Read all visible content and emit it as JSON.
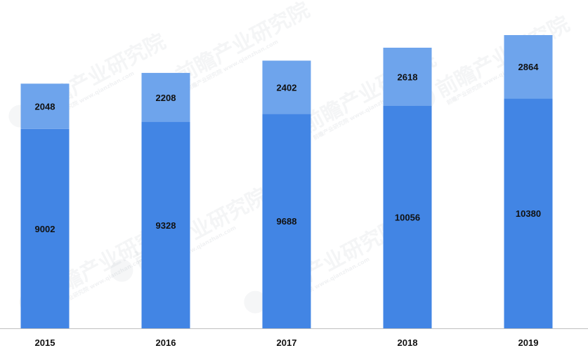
{
  "chart_data": {
    "type": "bar",
    "stacked": true,
    "categories": [
      "2015",
      "2016",
      "2017",
      "2018",
      "2019"
    ],
    "series": [
      {
        "values": [
          9002,
          9328,
          9688,
          10056,
          10380
        ],
        "color": "#4285e4"
      },
      {
        "values": [
          2048,
          2208,
          2402,
          2618,
          2864
        ],
        "color": "#6ea4ec"
      }
    ],
    "title": "",
    "xlabel": "",
    "ylabel": "",
    "ylim": [
      0,
      13244
    ],
    "grid": false,
    "legend": "none"
  },
  "watermark": {
    "text": "前瞻产业研究院",
    "subtext": "前瞻产业研究院 www.qianzhan.com"
  },
  "colors": {
    "axis": "#bfbfbf",
    "text": "#111111"
  }
}
